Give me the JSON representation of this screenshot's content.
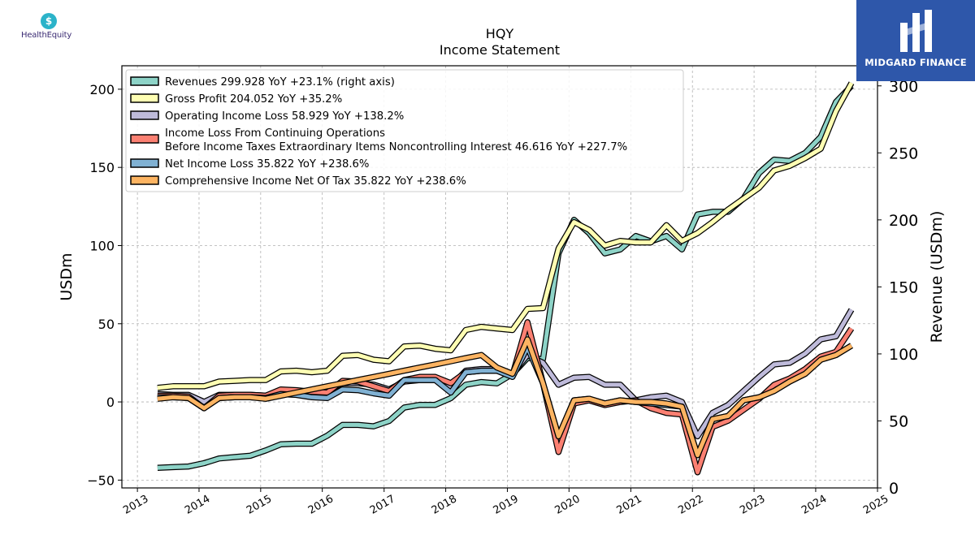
{
  "logos": {
    "left_text": "HealthEquity",
    "left_icon": "health-equity-logo",
    "right_text": "MIDGARD FINANCE"
  },
  "colors": {
    "revenues": "#8dd3c7",
    "gross_profit": "#ffffb3",
    "operating_income": "#bebada",
    "pretax_income": "#fb8072",
    "net_income": "#80b1d3",
    "comprehensive_income": "#fdb462",
    "brand_box": "#2e57aa"
  },
  "chart_data": {
    "type": "line",
    "title": "HQY",
    "subtitle": "Income Statement",
    "ylabel": "USDm",
    "ylabel_right": "Revenue (USDm)",
    "ylim": [
      -55,
      215
    ],
    "ylim_right": [
      0,
      315
    ],
    "yticks": [
      -50,
      0,
      50,
      100,
      150,
      200
    ],
    "yticks_right": [
      0,
      50,
      100,
      150,
      200,
      250,
      300
    ],
    "xlim": [
      "2012-10-01",
      "2025-01-01"
    ],
    "xticks": [
      "2013",
      "2014",
      "2015",
      "2016",
      "2017",
      "2018",
      "2019",
      "2020",
      "2021",
      "2022",
      "2023",
      "2024",
      "2025"
    ],
    "grid": true,
    "legend_position": "top-left",
    "x": [
      "2013-04-30",
      "2013-07-31",
      "2013-10-31",
      "2014-01-31",
      "2014-04-30",
      "2014-07-31",
      "2014-10-31",
      "2015-01-31",
      "2015-04-30",
      "2015-07-31",
      "2015-10-31",
      "2016-01-31",
      "2016-04-30",
      "2016-07-31",
      "2016-10-31",
      "2017-01-31",
      "2017-04-30",
      "2017-07-31",
      "2017-10-31",
      "2018-01-31",
      "2018-04-30",
      "2018-07-31",
      "2018-10-31",
      "2019-01-31",
      "2019-04-30",
      "2019-07-31",
      "2019-10-31",
      "2020-01-31",
      "2020-04-30",
      "2020-07-31",
      "2020-10-31",
      "2021-01-31",
      "2021-04-30",
      "2021-07-31",
      "2021-10-31",
      "2022-01-31",
      "2022-04-30",
      "2022-07-31",
      "2022-10-31",
      "2023-01-31",
      "2023-04-30",
      "2023-07-31",
      "2023-10-31",
      "2024-01-31",
      "2024-04-30",
      "2024-07-31"
    ],
    "series": [
      {
        "name": "Revenues",
        "legend": "Revenues  299.928 YoY +23.1% (right axis)",
        "axis": "right",
        "color_key": "revenues",
        "values": [
          15,
          15.5,
          16,
          18.5,
          22,
          23,
          24,
          28,
          32.5,
          33,
          33,
          39,
          47,
          47,
          46,
          50,
          60,
          62,
          62,
          67,
          77,
          79,
          78,
          85,
          97,
          96,
          175,
          200,
          190,
          175,
          178,
          188,
          184,
          188,
          178,
          204,
          206,
          206,
          216,
          235,
          245,
          244,
          250,
          262,
          288,
          300
        ]
      },
      {
        "name": "Gross Profit",
        "legend": "Gross Profit  204.052 YoY +35.2%",
        "axis": "left",
        "color_key": "gross_profit",
        "values": [
          9,
          10,
          10,
          10,
          13,
          13.5,
          14,
          14,
          19.5,
          20,
          19,
          20,
          29.5,
          30,
          27,
          26,
          35.5,
          36,
          34,
          33,
          46,
          48,
          47,
          46,
          59.5,
          60,
          98,
          115,
          110,
          100,
          103,
          102,
          102,
          113,
          103,
          108,
          115,
          123,
          130,
          137,
          148,
          151,
          156,
          162,
          186,
          204
        ]
      },
      {
        "name": "Operating Income Loss",
        "legend": "Operating Income Loss  58.929 YoY +138.2%",
        "axis": "left",
        "color_key": "operating_income",
        "values": [
          5,
          4.5,
          4.5,
          0,
          4.5,
          4.5,
          4.5,
          4,
          6.5,
          6,
          5.5,
          7,
          12,
          12,
          11,
          8,
          13,
          14,
          14,
          10,
          20,
          21,
          21,
          18,
          30,
          25,
          11,
          15.5,
          16,
          11,
          11,
          1,
          3,
          4,
          0,
          -22,
          -7,
          -2,
          7,
          16,
          24,
          25,
          31,
          40,
          42,
          59
        ]
      },
      {
        "name": "Income Loss From Continuing Operations Before Income Taxes Extraordinary Items Noncontrolling Interest",
        "legend_line1": "Income Loss From Continuing Operations",
        "legend_line2": "Before Income Taxes Extraordinary Items Noncontrolling Interest  46.616 YoY +227.7%",
        "axis": "left",
        "color_key": "pretax_income",
        "values": [
          4,
          4,
          3.5,
          -4,
          4,
          4.5,
          4.5,
          4,
          8,
          7.5,
          6.5,
          6,
          13.5,
          13,
          10,
          7,
          14,
          16,
          16,
          12,
          19,
          20,
          20,
          17,
          51,
          12,
          -32,
          -1,
          1,
          -2,
          0,
          1,
          -4,
          -7,
          -8,
          -45,
          -16,
          -12,
          -5,
          2,
          11,
          15,
          21,
          29,
          32,
          47
        ]
      },
      {
        "name": "Net Income Loss",
        "legend": "Net Income Loss  35.822 YoY +238.6%",
        "axis": "left",
        "color_key": "net_income",
        "values": [
          3,
          3,
          2.5,
          -4,
          2.5,
          3,
          3,
          2.5,
          5,
          4.5,
          3,
          2.5,
          8,
          7.5,
          5.5,
          4,
          14,
          14,
          14,
          6,
          19,
          20,
          20,
          16,
          35,
          12,
          -22,
          1,
          2,
          -1,
          1,
          0,
          -1,
          -2,
          -3,
          -34,
          -11,
          -9,
          1,
          3,
          7,
          13,
          18,
          27,
          30,
          36
        ]
      },
      {
        "name": "Comprehensive Income Net Of Tax",
        "legend": "Comprehensive Income Net Of Tax  35.822 YoY +238.6%",
        "axis": "left",
        "color_key": "comprehensive_income",
        "values": [
          2,
          3,
          2.5,
          -4,
          2.5,
          3,
          3,
          2,
          4,
          6,
          8,
          10,
          12,
          14,
          16,
          18,
          20,
          22,
          24,
          26,
          28,
          30,
          22,
          18,
          40,
          12,
          -22,
          1,
          2,
          -1,
          1,
          0,
          0,
          -1,
          -3,
          -34,
          -11,
          -9,
          1,
          3,
          7,
          13,
          18,
          27,
          30,
          36
        ]
      }
    ]
  }
}
